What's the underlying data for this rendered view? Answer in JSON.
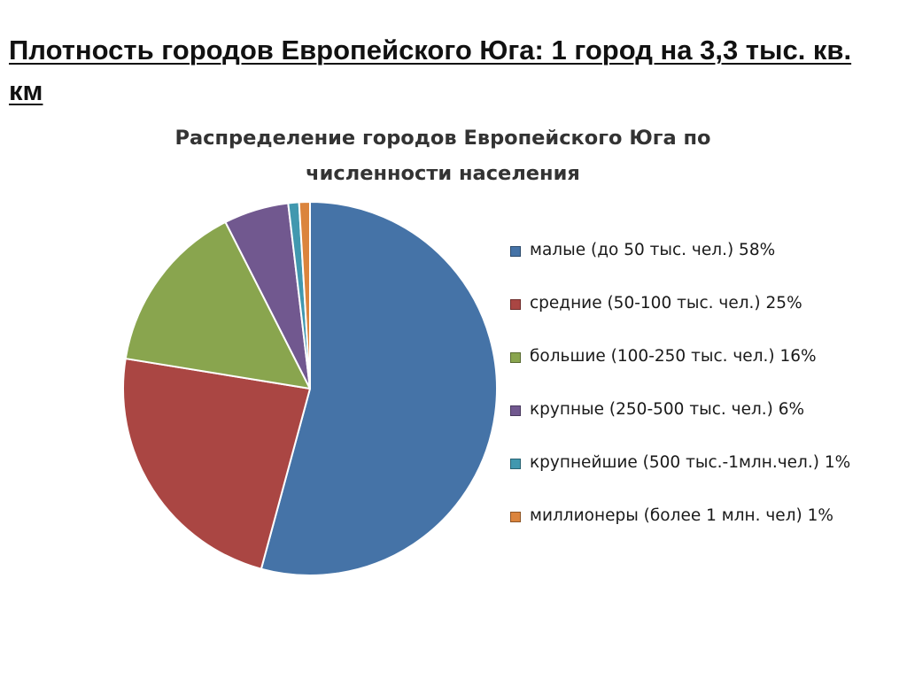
{
  "slide": {
    "title": "Плотность городов Европейского Юга: 1 город на 3,3 тыс. кв. км"
  },
  "chart_data": {
    "type": "pie",
    "title": "Распределение городов Европейского Юга по численности населения",
    "categories": [
      "малые (до 50 тыс. чел.)  58%",
      "средние (50-100 тыс. чел.) 25%",
      "большие (100-250 тыс. чел.) 16%",
      "крупные (250-500 тыс. чел.) 6%",
      "крупнейшие (500 тыс.-1млн.чел.) 1%",
      "миллионеры (более 1 млн. чел) 1%"
    ],
    "values": [
      58,
      25,
      16,
      6,
      1,
      1
    ],
    "colors": [
      "#4573a7",
      "#aa4643",
      "#89a54e",
      "#71588f",
      "#4198af",
      "#db843d"
    ],
    "legend_position": "right",
    "start_angle": "12 o'clock",
    "direction": "clockwise"
  }
}
